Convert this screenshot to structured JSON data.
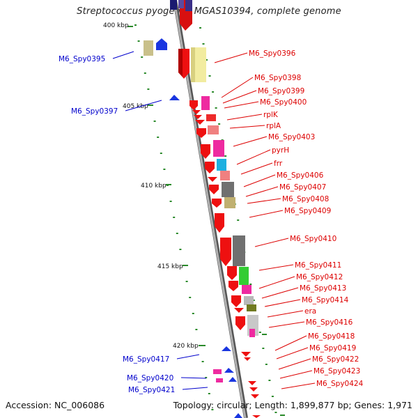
{
  "title": "Streptococcus pyogenes MGAS10394, complete genome",
  "footer": {
    "accession": "Accession: NC_006086",
    "summary": "Topology: circular; Length: 1,899,877 bp; Genes: 1,971"
  },
  "colors": {
    "forward_label": "#dd0000",
    "reverse_label": "#0000cc",
    "ticks": "#2a8a2a",
    "backbone": "#888888"
  },
  "kbp_labels": [
    "400 kbp",
    "405 kbp",
    "410 kbp",
    "415 kbp",
    "420 kbp"
  ],
  "forward_genes": [
    "M6_Spy0396",
    "M6_Spy0398",
    "M6_Spy0399",
    "M6_Spy0400",
    "rplK",
    "rplA",
    "M6_Spy0403",
    "pyrH",
    "frr",
    "M6_Spy0406",
    "M6_Spy0407",
    "M6_Spy0408",
    "M6_Spy0409",
    "M6_Spy0410",
    "M6_Spy0411",
    "M6_Spy0412",
    "M6_Spy0413",
    "M6_Spy0414",
    "era",
    "M6_Spy0416",
    "M6_Spy0418",
    "M6_Spy0419",
    "M6_Spy0422",
    "M6_Spy0423",
    "M6_Spy0424"
  ],
  "reverse_genes": [
    "M6_Spy0395",
    "M6_Spy0397",
    "M6_Spy0417",
    "M6_Spy0420",
    "M6_Spy0421"
  ]
}
